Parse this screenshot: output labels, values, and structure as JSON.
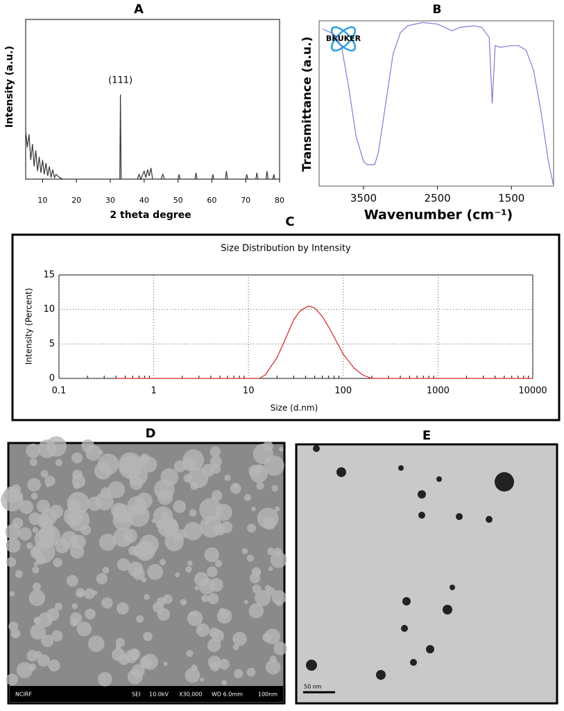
{
  "chart_data": [
    {
      "type": "line",
      "title": "A",
      "xlabel": "2 theta degree",
      "ylabel": "Intensity (a.u.)",
      "annotation": "(111)",
      "color": "#333333",
      "xlim": [
        5,
        80
      ],
      "ylim": [
        0,
        100
      ],
      "xticks": [
        10,
        20,
        30,
        40,
        50,
        60,
        70,
        80
      ],
      "x": [
        5,
        5.5,
        6,
        6.5,
        7,
        7.5,
        8,
        8.5,
        9,
        9.5,
        10,
        10.5,
        11,
        11.5,
        12,
        12.5,
        13,
        13.5,
        14,
        15,
        16,
        20,
        32.8,
        33,
        33.2,
        38,
        38.5,
        39,
        40,
        40.5,
        41,
        41.5,
        42,
        42.5,
        45,
        45.5,
        46,
        50,
        50.3,
        50.6,
        55,
        55.3,
        55.6,
        60,
        60.3,
        60.6,
        64,
        64.3,
        64.6,
        70,
        70.3,
        70.6,
        73,
        73.3,
        73.6,
        76,
        76.3,
        76.6,
        78,
        78.3,
        78.6,
        80
      ],
      "values": [
        30,
        20,
        28,
        12,
        22,
        8,
        18,
        5,
        14,
        4,
        12,
        3,
        10,
        2,
        8,
        1,
        6,
        1,
        3,
        1,
        0,
        0,
        0,
        53,
        0,
        0,
        3,
        0,
        5,
        1,
        6,
        2,
        7,
        0,
        0,
        3,
        0,
        0,
        3,
        0,
        0,
        4,
        0,
        0,
        3,
        0,
        0,
        5,
        0,
        0,
        3,
        0,
        0,
        4,
        0,
        0,
        5,
        0,
        0,
        3,
        0,
        0
      ]
    },
    {
      "type": "line",
      "title": "B",
      "xlabel": "Wavenumber (cm⁻¹)",
      "ylabel": "Transmittance (a.u.)",
      "logo": "BRUKER",
      "color": "#7b7bd6",
      "xlim": [
        4100,
        930
      ],
      "ylim": [
        0,
        100
      ],
      "xticks": [
        3500,
        2500,
        1500
      ],
      "x": [
        4050,
        4000,
        3900,
        3800,
        3700,
        3600,
        3500,
        3450,
        3350,
        3300,
        3200,
        3100,
        3000,
        2900,
        2700,
        2500,
        2300,
        2200,
        2000,
        1900,
        1800,
        1760,
        1720,
        1650,
        1500,
        1400,
        1300,
        1200,
        1100,
        1000,
        930
      ],
      "values": [
        95,
        94,
        92,
        85,
        60,
        30,
        15,
        13,
        13,
        20,
        50,
        80,
        93,
        97,
        99,
        98,
        94,
        96,
        97,
        96,
        90,
        50,
        85,
        84,
        85,
        85,
        82,
        70,
        45,
        15,
        0
      ]
    },
    {
      "type": "line",
      "title": "C",
      "subtitle": "Size Distribution by Intensity",
      "xlabel": "Size (d.nm)",
      "ylabel": "Intensity (Percent)",
      "color": "#d42020",
      "xscale": "log",
      "grid": true,
      "xlim": [
        0.1,
        10000
      ],
      "ylim": [
        0,
        15
      ],
      "xticks": [
        0.1,
        1,
        10,
        100,
        1000,
        10000
      ],
      "yticks": [
        0,
        5,
        10,
        15
      ],
      "x": [
        0.4,
        13,
        15,
        20,
        25,
        30,
        35,
        43,
        50,
        60,
        70,
        80,
        100,
        130,
        160,
        200,
        10000
      ],
      "values": [
        0,
        0,
        0.5,
        3,
        6,
        8.5,
        9.8,
        10.5,
        10.2,
        9,
        7.5,
        6,
        3.5,
        1.5,
        0.5,
        0,
        0
      ]
    }
  ],
  "images": [
    {
      "title": "D",
      "labels": [
        "NCIRF",
        "SEI",
        "10.0kV",
        "X30,000",
        "WD 6.0mm",
        "100nm"
      ]
    },
    {
      "title": "E",
      "labels": [
        "50 nm"
      ]
    }
  ]
}
